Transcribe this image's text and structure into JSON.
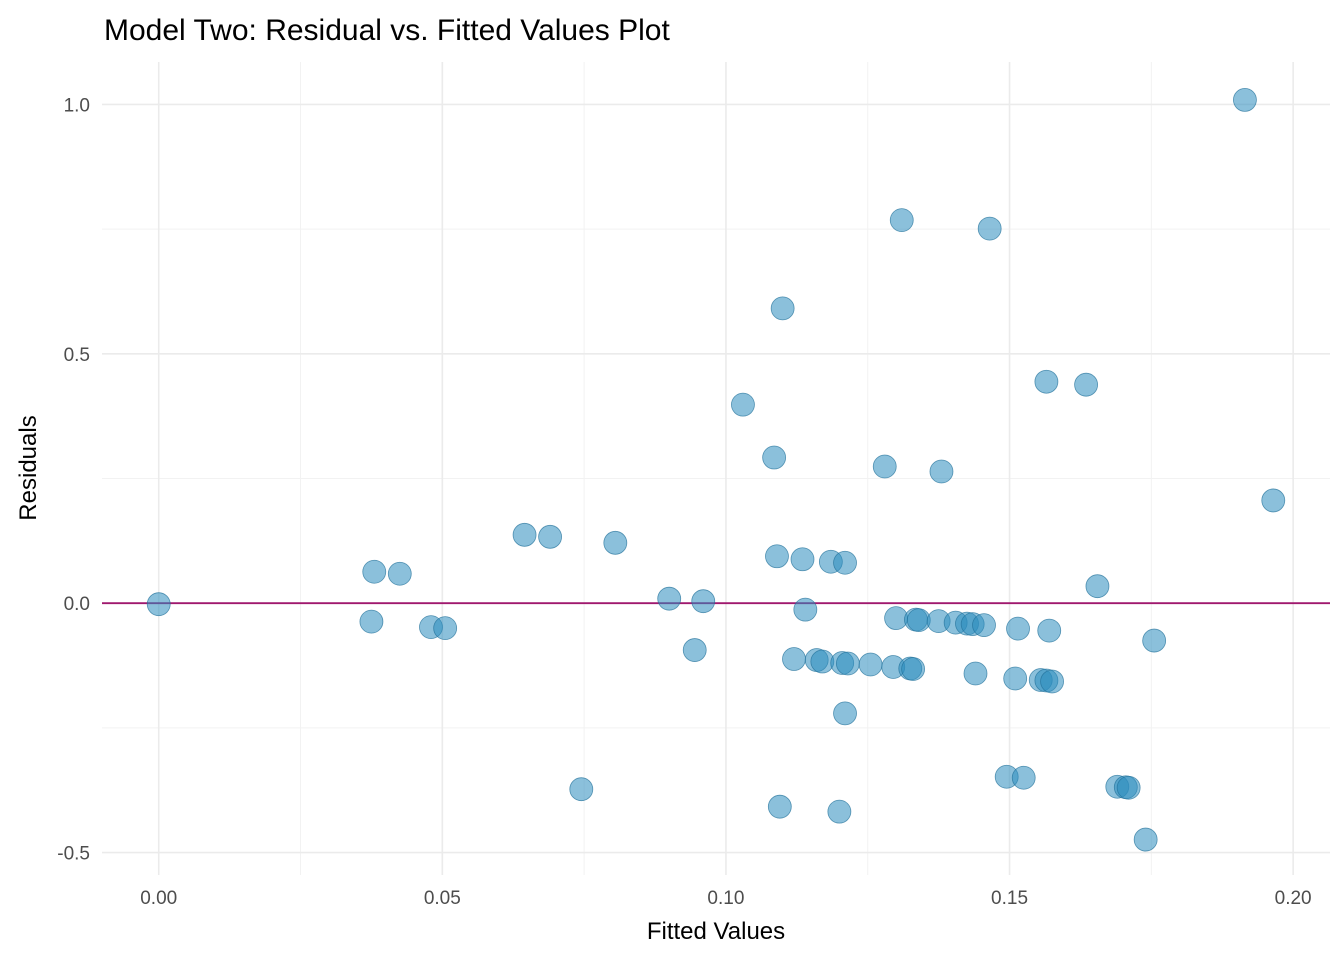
{
  "chart_data": {
    "type": "scatter",
    "title": "Model Two: Residual vs. Fitted Values Plot",
    "xlabel": "Fitted Values",
    "ylabel": "Residuals",
    "xlim": [
      -0.01,
      0.2065
    ],
    "ylim": [
      -0.545,
      1.085
    ],
    "x_ticks": [
      0.0,
      0.05,
      0.1,
      0.15,
      0.2
    ],
    "x_tick_labels": [
      "0.00",
      "0.05",
      "0.10",
      "0.15",
      "0.20"
    ],
    "x_minor_ticks": [
      0.025,
      0.075,
      0.125,
      0.175
    ],
    "y_ticks": [
      -0.5,
      0.0,
      0.5,
      1.0
    ],
    "y_tick_labels": [
      "-0.5",
      "0.0",
      "0.5",
      "1.0"
    ],
    "y_minor_ticks": [
      -0.25,
      0.25,
      0.75
    ],
    "grid": true,
    "reference_line": {
      "y": 0,
      "color": "#a0186e"
    },
    "point_color": "#2b8cbe",
    "point_opacity": 0.55,
    "points": [
      {
        "x": 0.0,
        "y": -0.002
      },
      {
        "x": 0.0375,
        "y": -0.037
      },
      {
        "x": 0.038,
        "y": 0.063
      },
      {
        "x": 0.0425,
        "y": 0.059
      },
      {
        "x": 0.048,
        "y": -0.048
      },
      {
        "x": 0.0505,
        "y": -0.05
      },
      {
        "x": 0.0645,
        "y": 0.137
      },
      {
        "x": 0.069,
        "y": 0.133
      },
      {
        "x": 0.0745,
        "y": -0.373
      },
      {
        "x": 0.0805,
        "y": 0.121
      },
      {
        "x": 0.09,
        "y": 0.009
      },
      {
        "x": 0.0945,
        "y": -0.094
      },
      {
        "x": 0.096,
        "y": 0.004
      },
      {
        "x": 0.103,
        "y": 0.398
      },
      {
        "x": 0.1085,
        "y": 0.292
      },
      {
        "x": 0.109,
        "y": 0.094
      },
      {
        "x": 0.1095,
        "y": -0.408
      },
      {
        "x": 0.11,
        "y": 0.591
      },
      {
        "x": 0.112,
        "y": -0.112
      },
      {
        "x": 0.1135,
        "y": 0.088
      },
      {
        "x": 0.114,
        "y": -0.013
      },
      {
        "x": 0.116,
        "y": -0.114
      },
      {
        "x": 0.117,
        "y": -0.117
      },
      {
        "x": 0.1185,
        "y": 0.083
      },
      {
        "x": 0.12,
        "y": -0.418
      },
      {
        "x": 0.1205,
        "y": -0.12
      },
      {
        "x": 0.121,
        "y": 0.081
      },
      {
        "x": 0.1215,
        "y": -0.121
      },
      {
        "x": 0.121,
        "y": -0.221
      },
      {
        "x": 0.1255,
        "y": -0.123
      },
      {
        "x": 0.128,
        "y": 0.274
      },
      {
        "x": 0.1295,
        "y": -0.128
      },
      {
        "x": 0.13,
        "y": -0.03
      },
      {
        "x": 0.131,
        "y": 0.768
      },
      {
        "x": 0.1325,
        "y": -0.131
      },
      {
        "x": 0.133,
        "y": -0.132
      },
      {
        "x": 0.1335,
        "y": -0.033
      },
      {
        "x": 0.134,
        "y": -0.034
      },
      {
        "x": 0.1375,
        "y": -0.036
      },
      {
        "x": 0.138,
        "y": 0.264
      },
      {
        "x": 0.1405,
        "y": -0.039
      },
      {
        "x": 0.1425,
        "y": -0.041
      },
      {
        "x": 0.1435,
        "y": -0.042
      },
      {
        "x": 0.144,
        "y": -0.141
      },
      {
        "x": 0.1455,
        "y": -0.044
      },
      {
        "x": 0.1465,
        "y": 0.751
      },
      {
        "x": 0.1495,
        "y": -0.348
      },
      {
        "x": 0.151,
        "y": -0.151
      },
      {
        "x": 0.1515,
        "y": -0.051
      },
      {
        "x": 0.1525,
        "y": -0.35
      },
      {
        "x": 0.1555,
        "y": -0.154
      },
      {
        "x": 0.1565,
        "y": -0.155
      },
      {
        "x": 0.1565,
        "y": 0.444
      },
      {
        "x": 0.157,
        "y": -0.055
      },
      {
        "x": 0.1575,
        "y": -0.157
      },
      {
        "x": 0.1635,
        "y": 0.438
      },
      {
        "x": 0.1655,
        "y": 0.034
      },
      {
        "x": 0.169,
        "y": -0.368
      },
      {
        "x": 0.1705,
        "y": -0.369
      },
      {
        "x": 0.171,
        "y": -0.37
      },
      {
        "x": 0.174,
        "y": -0.474
      },
      {
        "x": 0.1755,
        "y": -0.075
      },
      {
        "x": 0.1915,
        "y": 1.009
      },
      {
        "x": 0.1965,
        "y": 0.206
      }
    ]
  }
}
